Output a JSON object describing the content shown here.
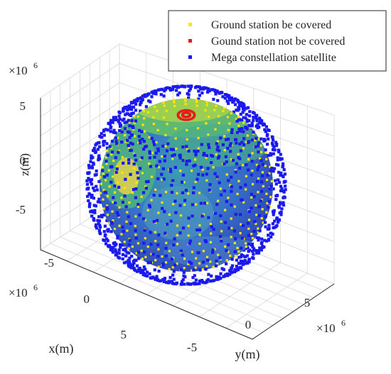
{
  "chart_data": {
    "type": "scatter",
    "projection": "3d",
    "xlabel": "x(m)",
    "ylabel": "y(m)",
    "zlabel": "z(m)",
    "axis_multiplier": "×10",
    "axis_exponent": "6",
    "x_ticks": [
      "-5",
      "0",
      "5"
    ],
    "y_ticks": [
      "-5",
      "0",
      "5"
    ],
    "z_ticks": [
      "5",
      "0",
      "-5"
    ],
    "xlim": [
      -7,
      7
    ],
    "ylim": [
      -7,
      7
    ],
    "zlim": [
      -7,
      7
    ],
    "grid": true,
    "legend_position": "top-right",
    "earth_radius_x1e6": 6.37,
    "satellite_orbit_radius_x1e6": 7.3,
    "series": [
      {
        "name": "Ground station be covered",
        "marker_color": "#ffe600",
        "marker": "square"
      },
      {
        "name": "Gound station not be covered",
        "marker_color": "#e41a1c",
        "marker": "square"
      },
      {
        "name": "Mega constellation satellite",
        "marker_color": "#1a1aee",
        "marker": "square"
      }
    ]
  }
}
